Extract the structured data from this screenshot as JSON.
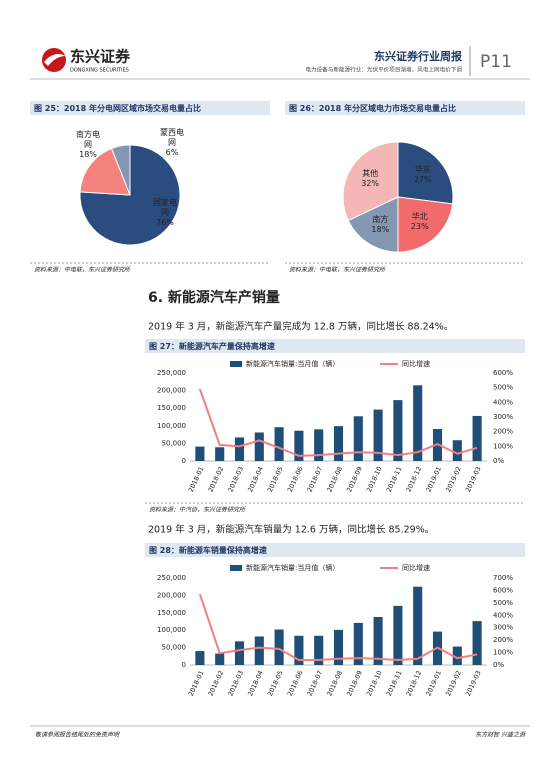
{
  "header": {
    "logo": "东兴证券",
    "logo_en": "DONGXING SECURITIES",
    "report_title": "东兴证券行业周报",
    "page": "P11",
    "subtitle": "电力设备与新能源行业：光伏平价项目渐增，风电上网电价下调"
  },
  "section_heading": "6. 新能源汽车产销量",
  "paragraphs": [
    "2019 年 3 月，新能源汽车产量完成为 12.8 万辆，同比增长 88.24%。",
    "2019 年 3 月，新能源汽车销量为 12.6 万辆，同比增长 85.29%。"
  ],
  "footer": {
    "left": "敬请参阅报告结尾处的免责声明",
    "right": "东方财智 兴盛之源"
  },
  "chart_data": [
    {
      "type": "pie",
      "title": "图 25：2018 年分电网区域市场交易电量占比",
      "categories": [
        "国家电网",
        "南方电网",
        "蒙西电网"
      ],
      "values": [
        76,
        18,
        6
      ],
      "value_labels": [
        "76%",
        "18%",
        "6%"
      ],
      "colors": [
        "#2b4c7e",
        "#f4837d",
        "#8497b0"
      ],
      "source": "资料来源：中电联，东兴证券研究所"
    },
    {
      "type": "pie",
      "title": "图 26：2018 年分区域电力市场交易电量占比",
      "categories": [
        "华东",
        "华北",
        "南方",
        "其他"
      ],
      "values": [
        27,
        23,
        18,
        32
      ],
      "value_labels": [
        "27%",
        "23%",
        "18%",
        "32%"
      ],
      "colors": [
        "#2b4c7e",
        "#f26b6b",
        "#8497b0",
        "#f4b6b6"
      ],
      "source": "资料来源：中电联，东兴证券研究所"
    },
    {
      "type": "bar",
      "title": "图 27：新能源汽车产量保持高增速",
      "categories": [
        "2018-01",
        "2018-02",
        "2018-03",
        "2018-04",
        "2018-05",
        "2018-06",
        "2018-07",
        "2018-08",
        "2018-09",
        "2018-10",
        "2018-11",
        "2018-12",
        "2019-01",
        "2019-02",
        "2019-03"
      ],
      "series": [
        {
          "name": "新能源汽车销量:当月值（辆）",
          "color": "#1f4e79",
          "values": [
            41000,
            39000,
            67000,
            81000,
            96000,
            86000,
            90000,
            99000,
            127000,
            146000,
            173000,
            215000,
            91000,
            59000,
            128000
          ]
        },
        {
          "name": "同比增速",
          "color": "#f08080",
          "type": "line",
          "axis": "y2",
          "values": [
            490,
            110,
            100,
            140,
            90,
            35,
            40,
            50,
            60,
            55,
            40,
            60,
            115,
            50,
            90
          ]
        }
      ],
      "ylim": [
        0,
        250000
      ],
      "yticks": [
        0,
        {
          "value": 50000,
          "label": "50,000"
        },
        {
          "value": 100000,
          "label": "100,000"
        },
        {
          "value": 150000,
          "label": "150,000"
        },
        {
          "value": 200000,
          "label": "200,000"
        },
        {
          "value": 250000,
          "label": "250,000"
        }
      ],
      "y2lim": [
        0,
        600
      ],
      "y2ticks": [
        {
          "value": 0,
          "label": "0%"
        },
        {
          "value": 100,
          "label": "100%"
        },
        {
          "value": 200,
          "label": "200%"
        },
        {
          "value": 300,
          "label": "300%"
        },
        {
          "value": 400,
          "label": "400%"
        },
        {
          "value": 500,
          "label": "500%"
        },
        {
          "value": 600,
          "label": "600%"
        }
      ],
      "source": "资料来源：中汽协，东兴证券研究所"
    },
    {
      "type": "bar",
      "title": "图 28：新能源车销量保持高增速",
      "categories": [
        "2018-01",
        "2018-02",
        "2018-03",
        "2018-04",
        "2018-05",
        "2018-06",
        "2018-07",
        "2018-08",
        "2018-09",
        "2018-10",
        "2018-11",
        "2018-12",
        "2019-01",
        "2019-02",
        "2019-03"
      ],
      "series": [
        {
          "name": "新能源汽车销量:当月值（辆）",
          "color": "#1f4e79",
          "values": [
            40000,
            33000,
            68000,
            82000,
            102000,
            84000,
            84000,
            101000,
            121000,
            138000,
            170000,
            225000,
            96000,
            53000,
            126000
          ]
        },
        {
          "name": "同比增速",
          "color": "#f08080",
          "type": "line",
          "axis": "y2",
          "values": [
            570,
            95,
            120,
            140,
            130,
            40,
            40,
            50,
            55,
            50,
            40,
            50,
            140,
            55,
            85
          ]
        }
      ],
      "ylim": [
        0,
        250000
      ],
      "yticks": [
        0,
        {
          "value": 50000,
          "label": "50,000"
        },
        {
          "value": 100000,
          "label": "100,000"
        },
        {
          "value": 150000,
          "label": "150,000"
        },
        {
          "value": 200000,
          "label": "200,000"
        },
        {
          "value": 250000,
          "label": "250,000"
        }
      ],
      "y2lim": [
        0,
        700
      ],
      "y2ticks": [
        {
          "value": 0,
          "label": "0%"
        },
        {
          "value": 100,
          "label": "100%"
        },
        {
          "value": 200,
          "label": "200%"
        },
        {
          "value": 300,
          "label": "300%"
        },
        {
          "value": 400,
          "label": "400%"
        },
        {
          "value": 500,
          "label": "500%"
        },
        {
          "value": 600,
          "label": "600%"
        },
        {
          "value": 700,
          "label": "700%"
        }
      ]
    }
  ]
}
